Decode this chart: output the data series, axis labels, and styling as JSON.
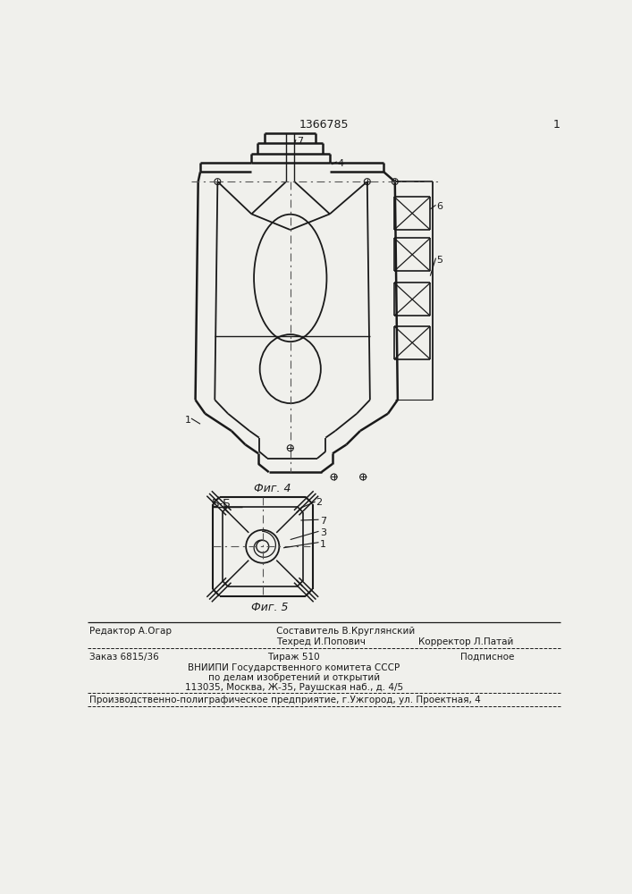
{
  "patent_number": "1366785",
  "fig4_label": "Фиг. 4",
  "fig5_label": "Фиг. 5",
  "bb_label": "Б-Б",
  "bg_color": "#f0f0ec",
  "line_color": "#1a1a1a",
  "text_color": "#1a1a1a",
  "editor_line": "Редактор А.Огар",
  "compiler_line": "Составитель В.Круглянский",
  "techred_line": "Техред И.Попович",
  "corrector_line": "Корректор Л.Патай",
  "order_line": "Заказ 6815/36",
  "tirazh_line": "Тираж 510",
  "podpisnoe_line": "Подписное",
  "vnipi_line": "ВНИИПИ Государственного комитета СССР",
  "po_delam_line": "по делам изобретений и открытий",
  "address_line": "113035, Москва, Ж-35, Раушская наб., д. 4/5",
  "proizv_line": "Производственно-полиграфическое предприятие, г.Ужгород, ул. Проектная, 4"
}
